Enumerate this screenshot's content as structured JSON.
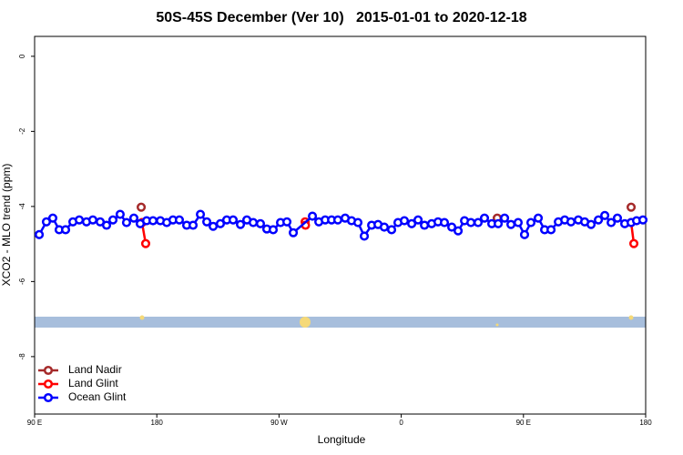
{
  "chart_data": {
    "type": "line",
    "title": "50S-45S December (Ver 10)   2015-01-01 to 2020-12-18",
    "x_label": "Longitude",
    "y_label": "XCO2 - MLO trend (ppm)",
    "xlim": [
      90,
      540
    ],
    "ylim": [
      -9.53,
      0.53
    ],
    "xticks": [
      {
        "value": 90,
        "label": "90 E"
      },
      180,
      {
        "value": 270,
        "label": "90 W"
      },
      {
        "value": 360,
        "label": "0"
      },
      {
        "value": 450,
        "label": "90 E"
      },
      {
        "value": 540,
        "label": "180"
      }
    ],
    "yticks": [
      0,
      -2,
      -4,
      -6,
      -8
    ],
    "legend": "bottom-left",
    "series": [
      {
        "name": "Land Nadir",
        "color": "#a52a2a",
        "x": [
          168.5,
          null,
          430.7,
          null,
          529.3
        ],
        "values": [
          -4.02,
          null,
          -4.31,
          null,
          -4.02
        ]
      },
      {
        "name": "Land Glint",
        "color": "#ff0000",
        "x": [
          169.1,
          171.8,
          null,
          289.2,
          289.5,
          null,
          529.3,
          531.3
        ],
        "values": [
          -4.43,
          -4.99,
          null,
          -4.41,
          -4.5,
          null,
          -4.43,
          -4.99
        ]
      },
      {
        "name": "Ocean Glint",
        "color": "#0000ff",
        "x": [
          93.4,
          98.7,
          103.4,
          108.1,
          112.8,
          118.2,
          122.9,
          128.2,
          132.9,
          138.3,
          143.0,
          147.7,
          153.0,
          157.7,
          163.1,
          167.8,
          172.5,
          177.2,
          182.6,
          187.3,
          191.9,
          196.6,
          202.0,
          206.7,
          212.1,
          216.8,
          221.5,
          226.8,
          231.5,
          236.2,
          241.6,
          246.3,
          251.0,
          256.3,
          261.0,
          265.7,
          271.1,
          275.8,
          280.5,
          294.6,
          299.3,
          304.0,
          308.7,
          313.3,
          318.7,
          323.4,
          328.1,
          332.8,
          338.2,
          342.9,
          347.5,
          352.9,
          357.6,
          362.3,
          367.7,
          372.4,
          377.1,
          382.4,
          387.1,
          391.8,
          397.2,
          401.9,
          406.6,
          411.3,
          416.6,
          421.3,
          426.7,
          431.4,
          436.1,
          440.8,
          446.1,
          450.8,
          455.5,
          460.9,
          465.6,
          470.3,
          475.7,
          480.4,
          485.0,
          490.4,
          495.1,
          499.8,
          505.2,
          509.9,
          514.6,
          519.2,
          524.6,
          529.3,
          533.3,
          538.0
        ],
        "values": [
          -4.75,
          -4.41,
          -4.31,
          -4.62,
          -4.62,
          -4.41,
          -4.36,
          -4.41,
          -4.36,
          -4.41,
          -4.5,
          -4.36,
          -4.21,
          -4.43,
          -4.31,
          -4.46,
          -4.38,
          -4.38,
          -4.38,
          -4.43,
          -4.36,
          -4.36,
          -4.5,
          -4.5,
          -4.21,
          -4.41,
          -4.53,
          -4.46,
          -4.36,
          -4.36,
          -4.48,
          -4.36,
          -4.43,
          -4.46,
          -4.6,
          -4.62,
          -4.43,
          -4.41,
          -4.7,
          -4.26,
          -4.41,
          -4.36,
          -4.36,
          -4.36,
          -4.31,
          -4.38,
          -4.43,
          -4.79,
          -4.5,
          -4.48,
          -4.55,
          -4.62,
          -4.43,
          -4.38,
          -4.46,
          -4.36,
          -4.5,
          -4.46,
          -4.41,
          -4.43,
          -4.55,
          -4.65,
          -4.38,
          -4.43,
          -4.43,
          -4.31,
          -4.46,
          -4.46,
          -4.31,
          -4.48,
          -4.43,
          -4.75,
          -4.43,
          -4.31,
          -4.62,
          -4.62,
          -4.41,
          -4.36,
          -4.41,
          -4.36,
          -4.41,
          -4.48,
          -4.36,
          -4.24,
          -4.43,
          -4.31,
          -4.46,
          -4.43,
          -4.38,
          -4.36
        ]
      }
    ]
  }
}
